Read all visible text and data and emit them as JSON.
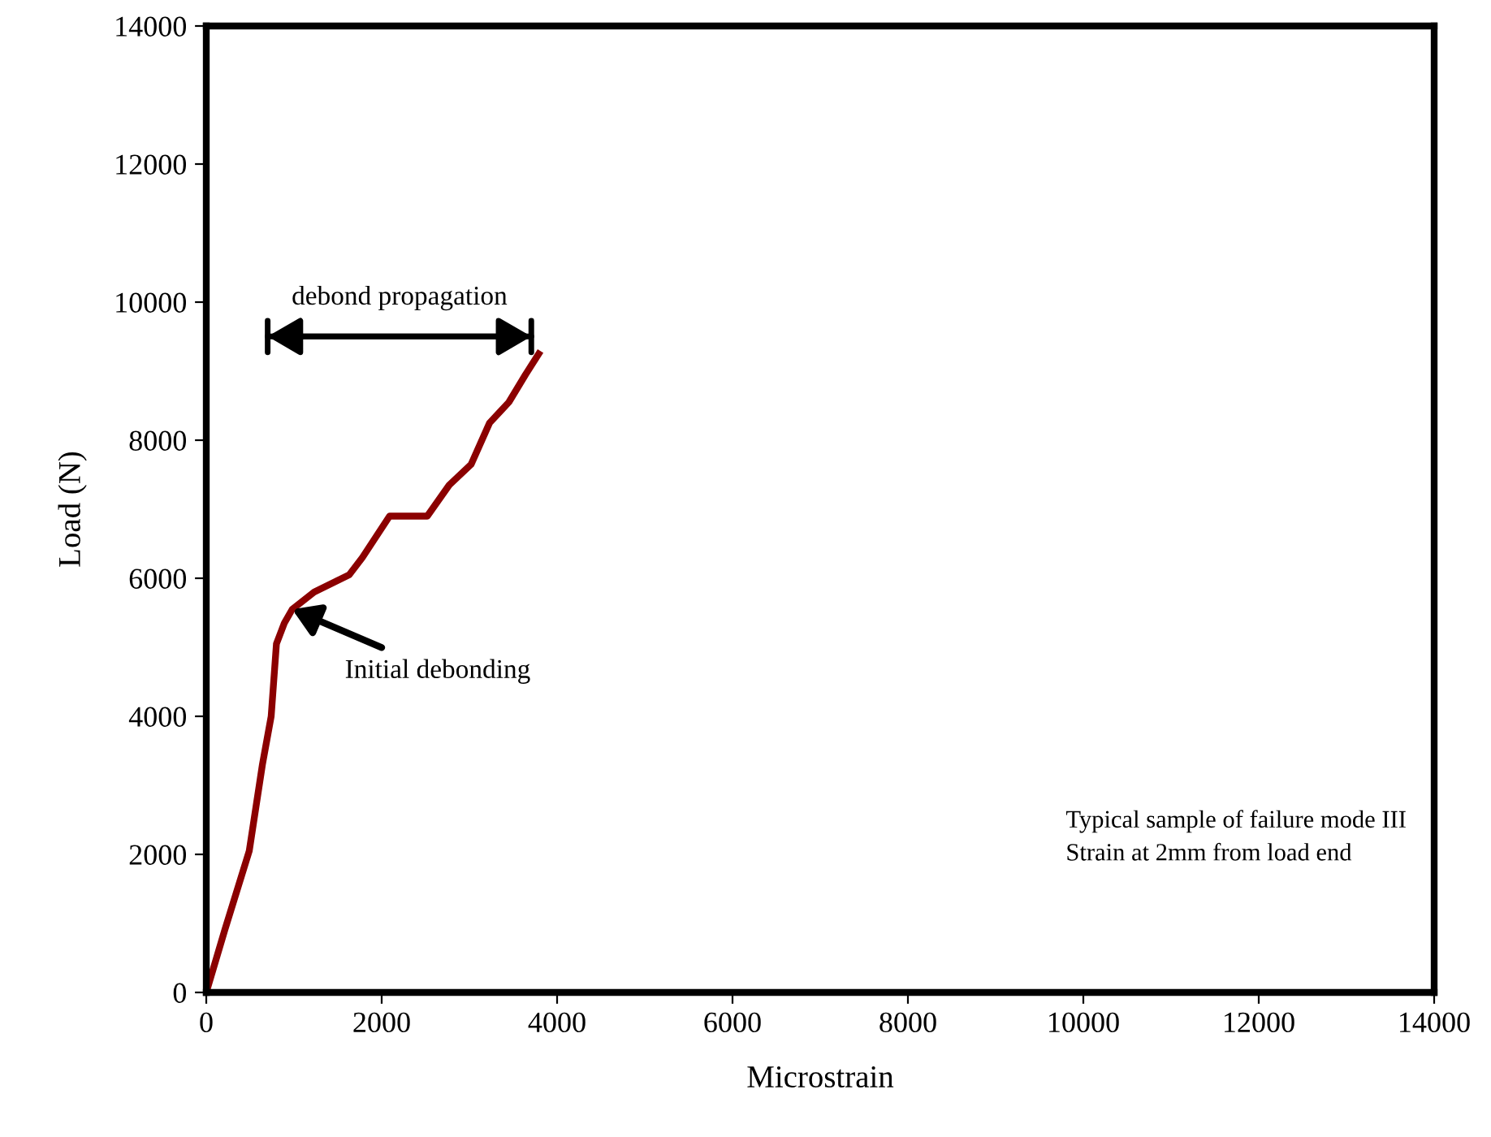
{
  "chart_data": {
    "type": "line",
    "xlabel": "Microstrain",
    "ylabel": "Load (N)",
    "series": [
      {
        "color": "#8b0000",
        "x": [
          0,
          210,
          490,
          640,
          740,
          800,
          890,
          980,
          1230,
          1630,
          1780,
          2090,
          2520,
          2770,
          3020,
          3230,
          3450,
          3640,
          3790
        ],
        "values": [
          0,
          900,
          2050,
          3300,
          4000,
          5050,
          5350,
          5550,
          5800,
          6050,
          6300,
          6900,
          6900,
          7350,
          7650,
          8250,
          8550,
          8950,
          9250
        ]
      }
    ],
    "xlim": [
      0,
      14000
    ],
    "ylim": [
      0,
      14000
    ],
    "xticks": [
      0,
      2000,
      4000,
      6000,
      8000,
      10000,
      12000,
      14000
    ],
    "yticks": [
      0,
      2000,
      4000,
      6000,
      8000,
      10000,
      12000,
      14000
    ],
    "grid": false,
    "legend": false,
    "marker": "none",
    "line_style": "solid",
    "annotations": [
      {
        "text": "Initial debonding",
        "x": 980,
        "y": 5550
      },
      {
        "text": "debond propagation",
        "x": 3790,
        "y": 9250
      },
      "Typical sample of failure mode III",
      "Strain at 2mm from load end"
    ]
  }
}
